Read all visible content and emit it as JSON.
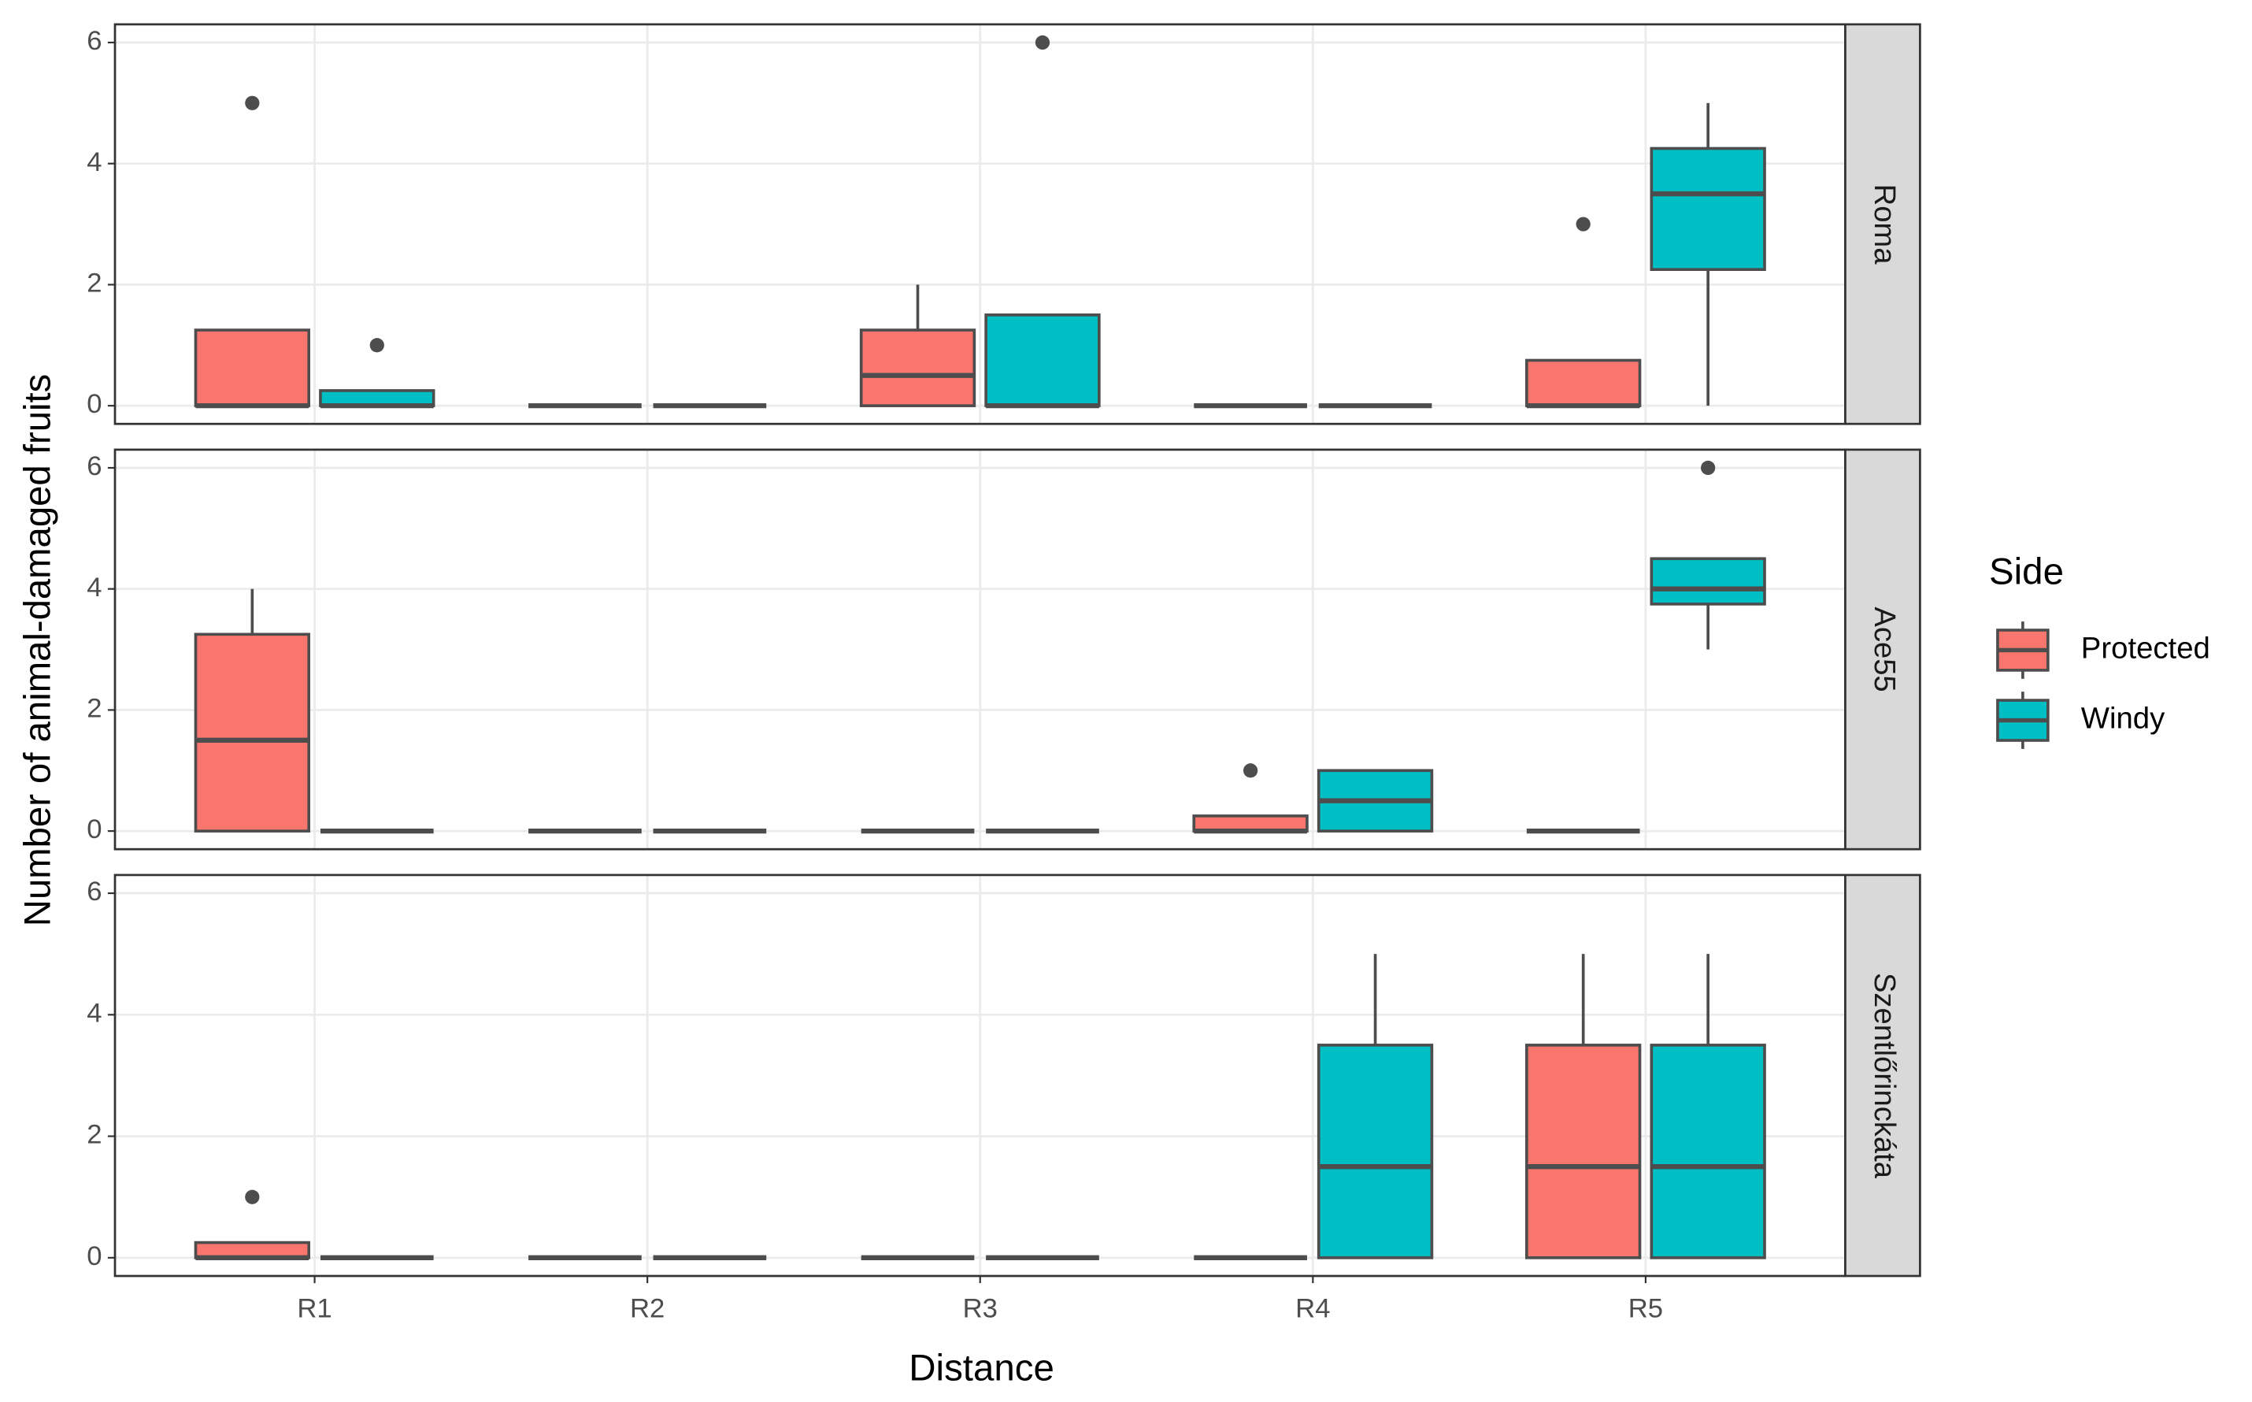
{
  "chart_data": {
    "type": "box",
    "xlabel": "Distance",
    "ylabel": "Number of animal-damaged fruits",
    "legend_title": "Side",
    "legend_position": "right",
    "grid": true,
    "categories": [
      "R1",
      "R2",
      "R3",
      "R4",
      "R5"
    ],
    "ylim": [
      -0.3,
      6.3
    ],
    "yticks": [
      0,
      2,
      4,
      6
    ],
    "series": [
      {
        "name": "Protected",
        "color": "#F8766D"
      },
      {
        "name": "Windy",
        "color": "#00BFC4"
      }
    ],
    "panels": [
      {
        "label": "Roma",
        "boxes": [
          [
            {
              "min": 0,
              "q1": 0,
              "median": 0,
              "q3": 1.25,
              "max": 1.25,
              "outliers": [
                5
              ]
            },
            {
              "min": 0,
              "q1": 0,
              "median": 0,
              "q3": 0,
              "max": 0
            },
            {
              "min": 0,
              "q1": 0,
              "median": 0.5,
              "q3": 1.25,
              "max": 2
            },
            {
              "min": 0,
              "q1": 0,
              "median": 0,
              "q3": 0,
              "max": 0
            },
            {
              "min": 0,
              "q1": 0,
              "median": 0,
              "q3": 0.75,
              "max": 0.75,
              "outliers": [
                3
              ]
            }
          ],
          [
            {
              "min": 0,
              "q1": 0,
              "median": 0,
              "q3": 0.25,
              "max": 0.25,
              "outliers": [
                1
              ]
            },
            {
              "min": 0,
              "q1": 0,
              "median": 0,
              "q3": 0,
              "max": 0
            },
            {
              "min": 0,
              "q1": 0,
              "median": 0,
              "q3": 1.5,
              "max": 1.5,
              "outliers": [
                6
              ]
            },
            {
              "min": 0,
              "q1": 0,
              "median": 0,
              "q3": 0,
              "max": 0
            },
            {
              "min": 0,
              "q1": 2.25,
              "median": 3.5,
              "q3": 4.25,
              "max": 5
            }
          ]
        ]
      },
      {
        "label": "Ace55",
        "boxes": [
          [
            {
              "min": 0,
              "q1": 0,
              "median": 1.5,
              "q3": 3.25,
              "max": 4
            },
            {
              "min": 0,
              "q1": 0,
              "median": 0,
              "q3": 0,
              "max": 0
            },
            {
              "min": 0,
              "q1": 0,
              "median": 0,
              "q3": 0,
              "max": 0
            },
            {
              "min": 0,
              "q1": 0,
              "median": 0,
              "q3": 0.25,
              "max": 0.25,
              "outliers": [
                1
              ]
            },
            {
              "min": 0,
              "q1": 0,
              "median": 0,
              "q3": 0,
              "max": 0
            }
          ],
          [
            {
              "min": 0,
              "q1": 0,
              "median": 0,
              "q3": 0,
              "max": 0
            },
            {
              "min": 0,
              "q1": 0,
              "median": 0,
              "q3": 0,
              "max": 0
            },
            {
              "min": 0,
              "q1": 0,
              "median": 0,
              "q3": 0,
              "max": 0
            },
            {
              "min": 0,
              "q1": 0,
              "median": 0.5,
              "q3": 1,
              "max": 1
            },
            {
              "min": 3,
              "q1": 3.75,
              "median": 4,
              "q3": 4.5,
              "max": 4.5,
              "outliers": [
                6
              ]
            }
          ]
        ]
      },
      {
        "label": "Szentlőrinckáta",
        "boxes": [
          [
            {
              "min": 0,
              "q1": 0,
              "median": 0,
              "q3": 0.25,
              "max": 0.25,
              "outliers": [
                1
              ]
            },
            {
              "min": 0,
              "q1": 0,
              "median": 0,
              "q3": 0,
              "max": 0
            },
            {
              "min": 0,
              "q1": 0,
              "median": 0,
              "q3": 0,
              "max": 0
            },
            {
              "min": 0,
              "q1": 0,
              "median": 0,
              "q3": 0,
              "max": 0
            },
            {
              "min": 0,
              "q1": 0,
              "median": 1.5,
              "q3": 3.5,
              "max": 5
            }
          ],
          [
            {
              "min": 0,
              "q1": 0,
              "median": 0,
              "q3": 0,
              "max": 0
            },
            {
              "min": 0,
              "q1": 0,
              "median": 0,
              "q3": 0,
              "max": 0
            },
            {
              "min": 0,
              "q1": 0,
              "median": 0,
              "q3": 0,
              "max": 0
            },
            {
              "min": 0,
              "q1": 0,
              "median": 1.5,
              "q3": 3.5,
              "max": 5
            },
            {
              "min": 0,
              "q1": 0,
              "median": 1.5,
              "q3": 3.5,
              "max": 5
            }
          ]
        ]
      }
    ]
  }
}
